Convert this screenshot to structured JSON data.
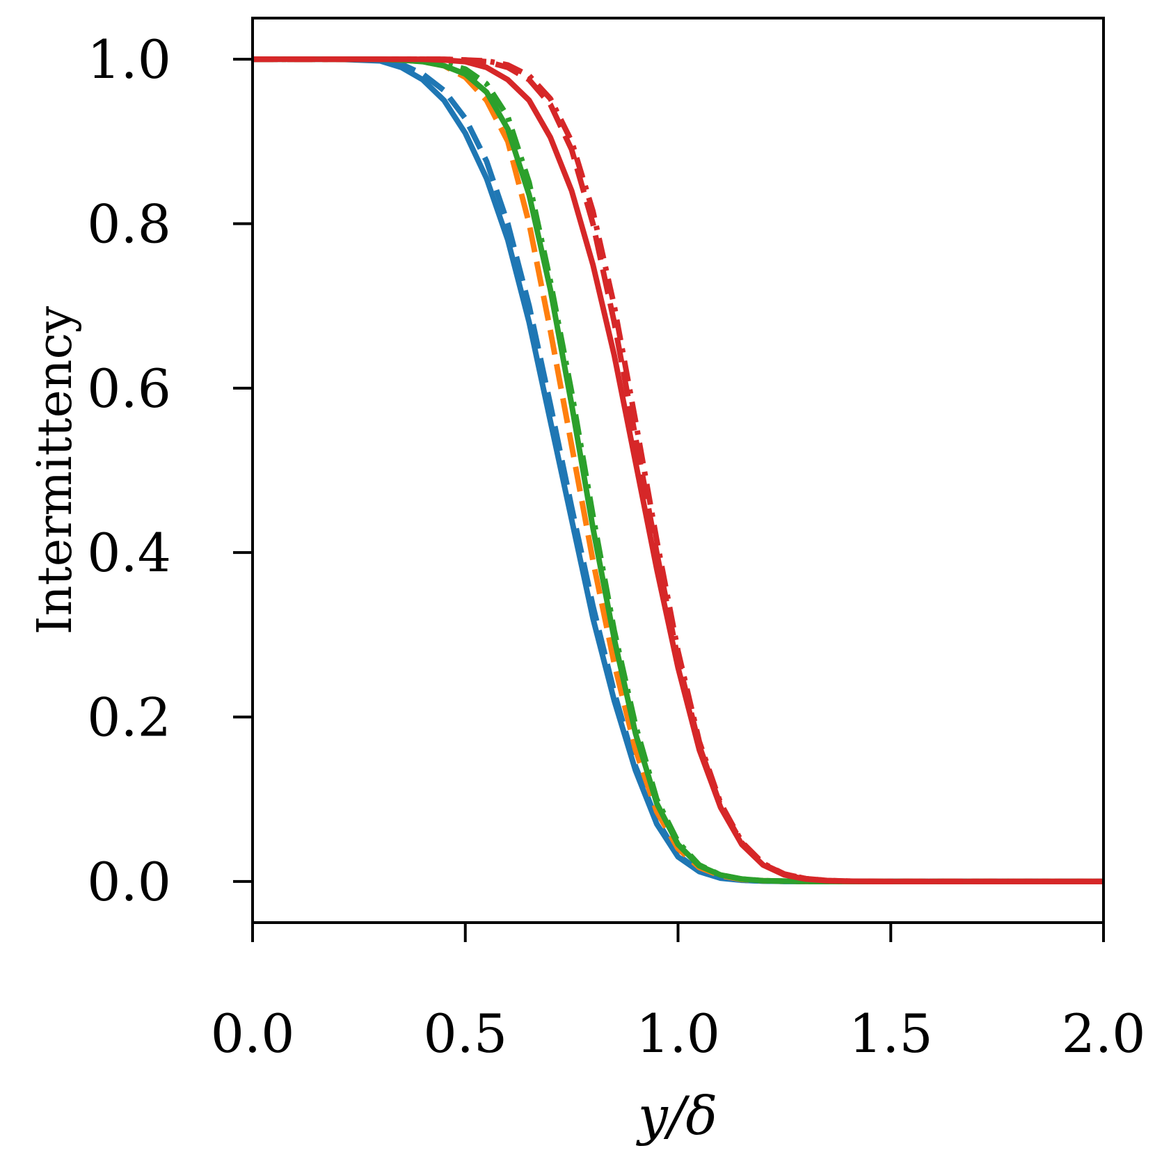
{
  "chart_data": {
    "type": "line",
    "title": "",
    "xlabel": "y/δ",
    "ylabel": "Intermittency",
    "xlim": [
      0.0,
      2.0
    ],
    "ylim": [
      -0.05,
      1.05
    ],
    "xticks": [
      "0.0",
      "0.5",
      "1.0",
      "1.5",
      "2.0"
    ],
    "yticks": [
      "0.0",
      "0.2",
      "0.4",
      "0.6",
      "0.8",
      "1.0"
    ],
    "grid": false,
    "legend": "none",
    "x": [
      0.0,
      0.1,
      0.2,
      0.3,
      0.35,
      0.4,
      0.45,
      0.5,
      0.55,
      0.6,
      0.65,
      0.7,
      0.75,
      0.8,
      0.85,
      0.9,
      0.95,
      1.0,
      1.05,
      1.1,
      1.15,
      1.2,
      1.25,
      1.3,
      1.35,
      1.4,
      1.45,
      1.5,
      1.6,
      1.7,
      1.8,
      1.9,
      2.0
    ],
    "series": [
      {
        "color": "#1f77b4",
        "style": "solid",
        "values": [
          1.0,
          1.0,
          1.0,
          0.998,
          0.99,
          0.975,
          0.95,
          0.91,
          0.855,
          0.78,
          0.68,
          0.56,
          0.44,
          0.32,
          0.22,
          0.135,
          0.07,
          0.03,
          0.012,
          0.004,
          0.0015,
          0.0005,
          0.0002,
          0.0,
          0.0,
          0.0,
          0.0,
          0.0,
          0.0,
          0.0,
          0.0,
          0.0,
          0.0
        ]
      },
      {
        "color": "#1f77b4",
        "style": "dashed",
        "values": [
          1.0,
          1.0,
          1.0,
          0.999,
          0.994,
          0.982,
          0.962,
          0.928,
          0.876,
          0.8,
          0.7,
          0.58,
          0.455,
          0.335,
          0.23,
          0.14,
          0.075,
          0.032,
          0.013,
          0.0045,
          0.0015,
          0.0005,
          0.0002,
          0.0,
          0.0,
          0.0,
          0.0,
          0.0,
          0.0,
          0.0,
          0.0,
          0.0,
          0.0
        ]
      },
      {
        "color": "#ff7f0e",
        "style": "dashed",
        "values": [
          1.0,
          1.0,
          1.0,
          1.0,
          0.999,
          0.997,
          0.992,
          0.978,
          0.95,
          0.9,
          0.8,
          0.67,
          0.53,
          0.39,
          0.265,
          0.16,
          0.085,
          0.04,
          0.017,
          0.007,
          0.0025,
          0.001,
          0.0004,
          0.0001,
          0.0,
          0.0,
          0.0,
          0.0,
          0.0,
          0.0,
          0.0,
          0.0,
          0.0
        ]
      },
      {
        "color": "#2ca02c",
        "style": "solid",
        "values": [
          1.0,
          1.0,
          1.0,
          1.0,
          0.999,
          0.997,
          0.992,
          0.982,
          0.96,
          0.915,
          0.835,
          0.72,
          0.58,
          0.43,
          0.295,
          0.18,
          0.095,
          0.045,
          0.019,
          0.008,
          0.003,
          0.001,
          0.0004,
          0.0001,
          0.0,
          0.0,
          0.0,
          0.0,
          0.0,
          0.0,
          0.0,
          0.0,
          0.0
        ]
      },
      {
        "color": "#2ca02c",
        "style": "dashdot",
        "values": [
          1.0,
          1.0,
          1.0,
          1.0,
          0.999,
          0.998,
          0.995,
          0.988,
          0.97,
          0.93,
          0.85,
          0.73,
          0.595,
          0.445,
          0.305,
          0.19,
          0.1,
          0.048,
          0.02,
          0.008,
          0.003,
          0.001,
          0.0004,
          0.0001,
          0.0,
          0.0,
          0.0,
          0.0,
          0.0,
          0.0,
          0.0,
          0.0,
          0.0
        ]
      },
      {
        "color": "#d62728",
        "style": "solid",
        "values": [
          1.0,
          1.0,
          1.0,
          1.0,
          1.0,
          1.0,
          0.999,
          0.997,
          0.99,
          0.975,
          0.95,
          0.905,
          0.84,
          0.75,
          0.64,
          0.51,
          0.38,
          0.26,
          0.16,
          0.09,
          0.045,
          0.02,
          0.008,
          0.003,
          0.001,
          0.0003,
          0.0001,
          0.0,
          0.0,
          0.0,
          0.0,
          0.0,
          0.0
        ]
      },
      {
        "color": "#d62728",
        "style": "dashed",
        "values": [
          1.0,
          1.0,
          1.0,
          1.0,
          1.0,
          1.0,
          1.0,
          0.999,
          0.997,
          0.99,
          0.975,
          0.945,
          0.89,
          0.8,
          0.68,
          0.54,
          0.4,
          0.27,
          0.165,
          0.092,
          0.047,
          0.021,
          0.009,
          0.0035,
          0.0012,
          0.0004,
          0.0001,
          0.0,
          0.0,
          0.0,
          0.0,
          0.0,
          0.0
        ]
      },
      {
        "color": "#d62728",
        "style": "dashdot",
        "values": [
          1.0,
          1.0,
          1.0,
          1.0,
          1.0,
          1.0,
          1.0,
          0.999,
          0.998,
          0.993,
          0.98,
          0.952,
          0.9,
          0.815,
          0.7,
          0.56,
          0.415,
          0.28,
          0.17,
          0.095,
          0.048,
          0.022,
          0.009,
          0.0035,
          0.0012,
          0.0004,
          0.0001,
          0.0,
          0.0,
          0.0,
          0.0,
          0.0,
          0.0
        ]
      }
    ]
  }
}
